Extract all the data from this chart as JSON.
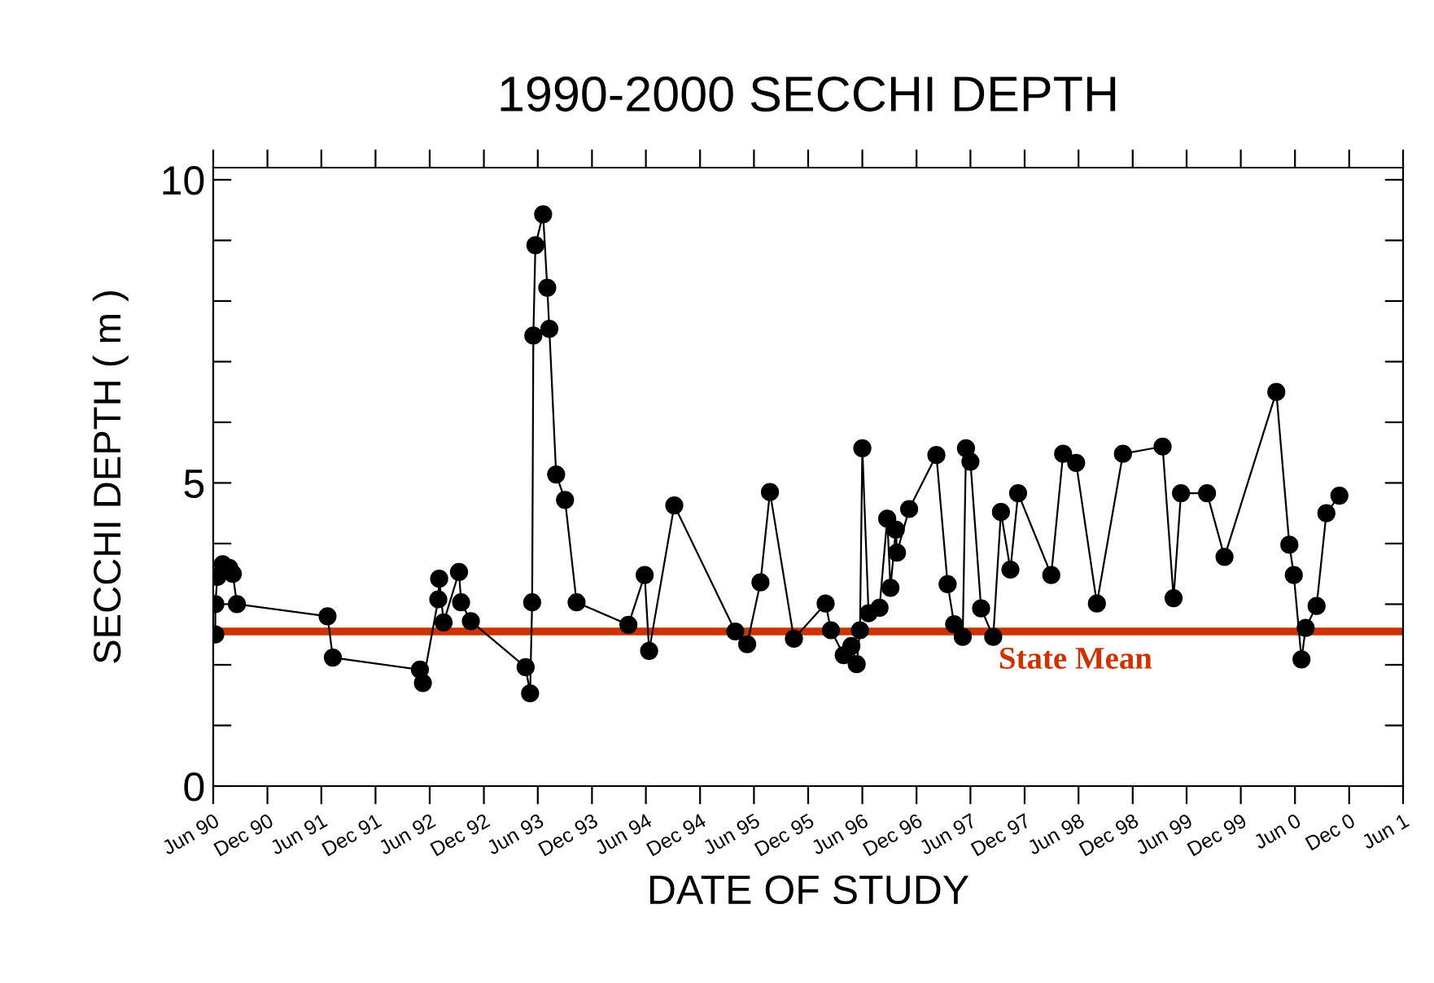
{
  "chart_data": {
    "type": "line",
    "title": "1990-2000 SECCHI DEPTH",
    "xlabel": "DATE OF STUDY",
    "ylabel": "SECCHI DEPTH ( m )",
    "x": [
      "1990-06-08",
      "1990-06-08",
      "1990-06-15",
      "1990-07-03",
      "1990-07-25",
      "1990-08-06",
      "1990-08-20",
      "1991-06-22",
      "1991-07-10",
      "1992-04-29",
      "1992-05-09",
      "1992-06-30",
      "1992-07-03",
      "1992-07-18",
      "1992-09-08",
      "1992-09-15",
      "1992-10-18",
      "1993-04-21",
      "1993-05-06",
      "1993-05-13",
      "1993-05-17",
      "1993-05-24",
      "1993-06-19",
      "1993-07-03",
      "1993-07-10",
      "1993-08-02",
      "1993-09-01",
      "1993-10-10",
      "1994-04-03",
      "1994-05-28",
      "1994-06-12",
      "1994-09-05",
      "1995-03-30",
      "1995-05-09",
      "1995-06-23",
      "1995-07-25",
      "1995-10-14",
      "1996-01-29",
      "1996-02-16",
      "1996-03-30",
      "1996-04-25",
      "1996-05-13",
      "1996-05-24",
      "1996-06-01",
      "1996-06-22",
      "1996-07-29",
      "1996-08-24",
      "1996-09-04",
      "1996-09-22",
      "1996-09-26",
      "1996-11-06",
      "1997-02-06",
      "1997-03-16",
      "1997-04-07",
      "1997-05-06",
      "1997-05-17",
      "1997-06-01",
      "1997-07-07",
      "1997-08-17",
      "1997-09-12",
      "1997-10-14",
      "1997-11-09",
      "1998-03-01",
      "1998-04-10",
      "1998-05-24",
      "1998-08-02",
      "1998-10-29",
      "1999-03-12",
      "1999-04-18",
      "1999-05-13",
      "1999-08-09",
      "1999-10-07",
      "2000-03-30",
      "2000-05-13",
      "2000-05-28",
      "2000-06-23",
      "2000-07-07",
      "2000-08-13",
      "2000-09-15",
      "2000-10-29"
    ],
    "series": [
      {
        "color": "#000000",
        "values": [
          2.5,
          3.0,
          3.45,
          3.66,
          3.6,
          3.5,
          3.0,
          2.8,
          2.12,
          1.92,
          1.7,
          3.08,
          3.42,
          2.7,
          3.53,
          3.03,
          2.72,
          1.96,
          1.53,
          3.03,
          7.43,
          8.92,
          9.43,
          8.22,
          7.54,
          5.14,
          4.72,
          3.03,
          2.66,
          3.48,
          2.23,
          4.63,
          2.55,
          2.34,
          3.36,
          4.85,
          2.43,
          3.01,
          2.57,
          2.16,
          2.31,
          2.01,
          2.57,
          5.57,
          2.85,
          2.94,
          4.41,
          3.27,
          4.23,
          3.85,
          4.57,
          5.46,
          3.33,
          2.67,
          2.46,
          5.57,
          5.35,
          2.93,
          2.46,
          4.52,
          3.57,
          4.83,
          3.48,
          5.48,
          5.33,
          3.01,
          5.48,
          5.6,
          3.1,
          4.83,
          4.83,
          3.78,
          6.5,
          3.98,
          3.48,
          2.09,
          2.61,
          2.97,
          4.5,
          4.79
        ]
      }
    ],
    "xlim": [
      "1990-06-01",
      "2001-06-01"
    ],
    "xticks": [
      {
        "value": "1990-06-01",
        "label": "Jun 90"
      },
      {
        "value": "1990-12-01",
        "label": "Dec 90"
      },
      {
        "value": "1991-06-01",
        "label": "Jun 91"
      },
      {
        "value": "1991-12-01",
        "label": "Dec 91"
      },
      {
        "value": "1992-06-01",
        "label": "Jun 92"
      },
      {
        "value": "1992-12-01",
        "label": "Dec 92"
      },
      {
        "value": "1993-06-01",
        "label": "Jun 93"
      },
      {
        "value": "1993-12-01",
        "label": "Dec 93"
      },
      {
        "value": "1994-06-01",
        "label": "Jun 94"
      },
      {
        "value": "1994-12-01",
        "label": "Dec 94"
      },
      {
        "value": "1995-06-01",
        "label": "Jun 95"
      },
      {
        "value": "1995-12-01",
        "label": "Dec 95"
      },
      {
        "value": "1996-06-01",
        "label": "Jun 96"
      },
      {
        "value": "1996-12-01",
        "label": "Dec 96"
      },
      {
        "value": "1997-06-01",
        "label": "Jun 97"
      },
      {
        "value": "1997-12-01",
        "label": "Dec 97"
      },
      {
        "value": "1998-06-01",
        "label": "Jun 98"
      },
      {
        "value": "1998-12-01",
        "label": "Dec 98"
      },
      {
        "value": "1999-06-01",
        "label": "Jun 99"
      },
      {
        "value": "1999-12-01",
        "label": "Dec 99"
      },
      {
        "value": "2000-06-01",
        "label": "Jun 0"
      },
      {
        "value": "2000-12-01",
        "label": "Dec 0"
      },
      {
        "value": "2001-06-01",
        "label": "Jun 1"
      }
    ],
    "ylim": [
      0,
      10.2
    ],
    "yticks": [
      0,
      {
        "value": 1,
        "label": null
      },
      {
        "value": 2,
        "label": null
      },
      {
        "value": 3,
        "label": null
      },
      {
        "value": 4,
        "label": null
      },
      5,
      {
        "value": 6,
        "label": null
      },
      {
        "value": 7,
        "label": null
      },
      {
        "value": 8,
        "label": null
      },
      {
        "value": 9,
        "label": null
      },
      10
    ],
    "ref_lines": [
      {
        "axis": "y",
        "value": 2.55,
        "label": "State Mean",
        "color": "#cc3300"
      }
    ],
    "marker": "circle",
    "line_style": "solid",
    "grid": false,
    "legend": false
  }
}
